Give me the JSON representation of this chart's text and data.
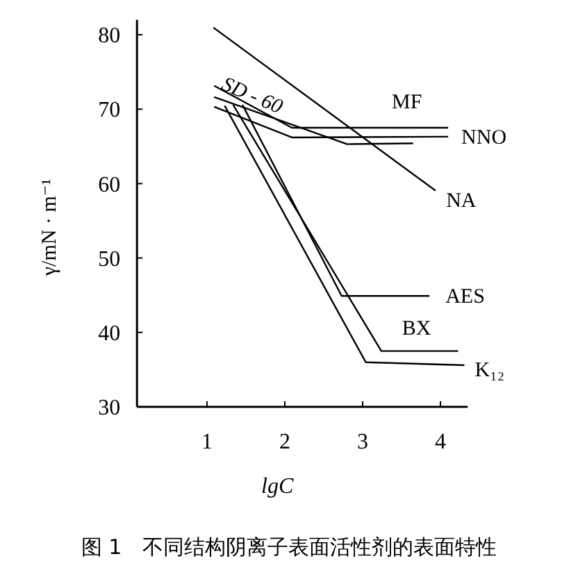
{
  "chart_data": {
    "type": "line",
    "title": "图 1　不同结构阴离子表面活性剂的表面特性",
    "xlabel": "lgC",
    "ylabel": "γ/mN · m⁻¹",
    "xlim": [
      0.1,
      4.35
    ],
    "ylim": [
      30,
      82
    ],
    "xticks": [
      1,
      2,
      3,
      4
    ],
    "yticks": [
      30,
      40,
      50,
      60,
      70,
      80
    ],
    "grid": false,
    "marker": "none",
    "line_style": "solid",
    "series": [
      {
        "name": "MF",
        "color": "#000000",
        "x": [
          1.1,
          2.09,
          4.09
        ],
        "values": [
          73.1,
          67.5,
          67.5
        ]
      },
      {
        "name": "SD - 60",
        "color": "#000000",
        "x": [
          1.1,
          2.8,
          3.64
        ],
        "values": [
          71.6,
          65.3,
          65.4
        ]
      },
      {
        "name": "NNO",
        "color": "#000000",
        "x": [
          1.1,
          2.09,
          4.09
        ],
        "values": [
          70.3,
          66.2,
          66.3
        ]
      },
      {
        "name": "NA",
        "color": "#000000",
        "x": [
          1.09,
          3.93
        ],
        "values": [
          80.9,
          59.1
        ]
      },
      {
        "name": "AES",
        "color": "#000000",
        "x": [
          1.46,
          2.73,
          3.85
        ],
        "values": [
          70.5,
          44.9,
          44.9
        ]
      },
      {
        "name": "BX",
        "color": "#000000",
        "x": [
          1.34,
          3.24,
          4.22
        ],
        "values": [
          70.5,
          37.5,
          37.5
        ]
      },
      {
        "name": "K₁₂",
        "color": "#000000",
        "x": [
          1.23,
          3.04,
          4.3
        ],
        "values": [
          70.4,
          36.0,
          35.6
        ]
      }
    ]
  }
}
